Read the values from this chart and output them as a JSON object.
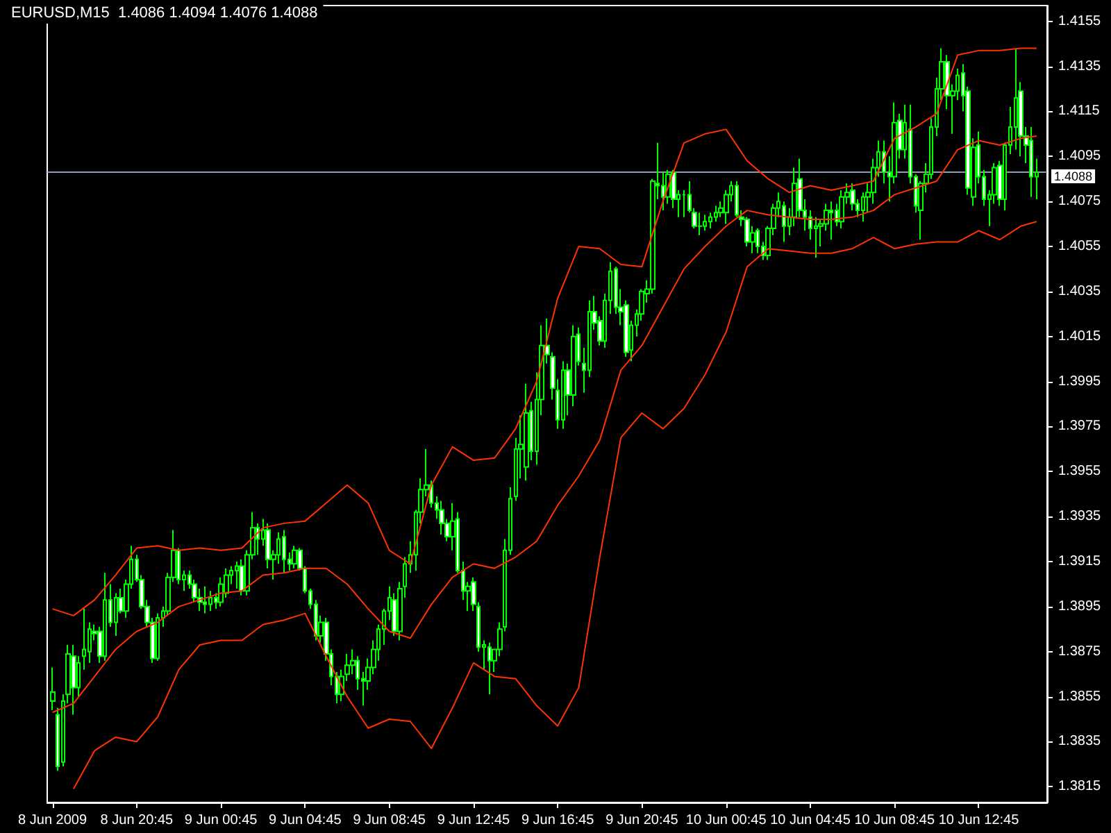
{
  "chart_data": {
    "type": "candlestick",
    "title": "EURUSD,M15  1.4086 1.4094 1.4076 1.4088",
    "color": "#00ff00",
    "marker": "none",
    "x": [
      "2009-06-08T16:45",
      "2009-06-08T17:00",
      "2009-06-08T17:15",
      "2009-06-08T17:30",
      "2009-06-08T17:45",
      "2009-06-08T18:00",
      "2009-06-08T18:15",
      "2009-06-08T18:30",
      "2009-06-08T18:45",
      "2009-06-08T19:00",
      "2009-06-08T19:15",
      "2009-06-08T19:30",
      "2009-06-08T19:45",
      "2009-06-08T20:00",
      "2009-06-08T20:15",
      "2009-06-08T20:30",
      "2009-06-08T20:45",
      "2009-06-08T21:00",
      "2009-06-08T21:15",
      "2009-06-08T21:30",
      "2009-06-08T21:45",
      "2009-06-08T22:00",
      "2009-06-08T22:15",
      "2009-06-08T22:30",
      "2009-06-08T22:45",
      "2009-06-08T23:00",
      "2009-06-08T23:15",
      "2009-06-08T23:30",
      "2009-06-08T23:45",
      "2009-06-09T00:00",
      "2009-06-09T00:15",
      "2009-06-09T00:30",
      "2009-06-09T00:45",
      "2009-06-09T01:00",
      "2009-06-09T01:15",
      "2009-06-09T01:30",
      "2009-06-09T01:45",
      "2009-06-09T02:00",
      "2009-06-09T02:15",
      "2009-06-09T02:30",
      "2009-06-09T02:45",
      "2009-06-09T03:00",
      "2009-06-09T03:15",
      "2009-06-09T03:30",
      "2009-06-09T03:45",
      "2009-06-09T04:00",
      "2009-06-09T04:15",
      "2009-06-09T04:30",
      "2009-06-09T04:45",
      "2009-06-09T05:00",
      "2009-06-09T05:15",
      "2009-06-09T05:30",
      "2009-06-09T05:45",
      "2009-06-09T06:00",
      "2009-06-09T06:15",
      "2009-06-09T06:30",
      "2009-06-09T06:45",
      "2009-06-09T07:00",
      "2009-06-09T07:15",
      "2009-06-09T07:30",
      "2009-06-09T07:45",
      "2009-06-09T08:00",
      "2009-06-09T08:15",
      "2009-06-09T08:30",
      "2009-06-09T08:45",
      "2009-06-09T09:00",
      "2009-06-09T09:15",
      "2009-06-09T09:30",
      "2009-06-09T09:45",
      "2009-06-09T10:00",
      "2009-06-09T10:15",
      "2009-06-09T10:30",
      "2009-06-09T10:45",
      "2009-06-09T11:00",
      "2009-06-09T11:15",
      "2009-06-09T11:30",
      "2009-06-09T11:45",
      "2009-06-09T12:00",
      "2009-06-09T12:15",
      "2009-06-09T12:30",
      "2009-06-09T12:45",
      "2009-06-09T13:00",
      "2009-06-09T13:15",
      "2009-06-09T13:30",
      "2009-06-09T13:45",
      "2009-06-09T14:00",
      "2009-06-09T14:15",
      "2009-06-09T14:30",
      "2009-06-09T14:45",
      "2009-06-09T15:00",
      "2009-06-09T15:15",
      "2009-06-09T15:30",
      "2009-06-09T15:45",
      "2009-06-09T16:00",
      "2009-06-09T16:15",
      "2009-06-09T16:30",
      "2009-06-09T16:45",
      "2009-06-09T17:00",
      "2009-06-09T17:15",
      "2009-06-09T17:30",
      "2009-06-09T17:45",
      "2009-06-09T18:00",
      "2009-06-09T18:15",
      "2009-06-09T18:30",
      "2009-06-09T18:45",
      "2009-06-09T19:00",
      "2009-06-09T19:15",
      "2009-06-09T19:30",
      "2009-06-09T19:45",
      "2009-06-09T20:00",
      "2009-06-09T20:15",
      "2009-06-09T20:30",
      "2009-06-09T20:45",
      "2009-06-09T21:00",
      "2009-06-09T21:15",
      "2009-06-09T21:30",
      "2009-06-09T21:45",
      "2009-06-09T22:00",
      "2009-06-09T22:15",
      "2009-06-09T22:30",
      "2009-06-09T22:45",
      "2009-06-09T23:00",
      "2009-06-09T23:15",
      "2009-06-09T23:30",
      "2009-06-09T23:45",
      "2009-06-10T00:00",
      "2009-06-10T00:15",
      "2009-06-10T00:30",
      "2009-06-10T00:45",
      "2009-06-10T01:00",
      "2009-06-10T01:15",
      "2009-06-10T01:30",
      "2009-06-10T01:45",
      "2009-06-10T02:00",
      "2009-06-10T02:15",
      "2009-06-10T02:30",
      "2009-06-10T02:45",
      "2009-06-10T03:00",
      "2009-06-10T03:15",
      "2009-06-10T03:30",
      "2009-06-10T03:45",
      "2009-06-10T04:00",
      "2009-06-10T04:15",
      "2009-06-10T04:30",
      "2009-06-10T04:45",
      "2009-06-10T05:00",
      "2009-06-10T05:15",
      "2009-06-10T05:30",
      "2009-06-10T05:45",
      "2009-06-10T06:00",
      "2009-06-10T06:15",
      "2009-06-10T06:30",
      "2009-06-10T06:45",
      "2009-06-10T07:00",
      "2009-06-10T07:15",
      "2009-06-10T07:30",
      "2009-06-10T07:45",
      "2009-06-10T08:00",
      "2009-06-10T08:15",
      "2009-06-10T08:30",
      "2009-06-10T08:45",
      "2009-06-10T09:00",
      "2009-06-10T09:15",
      "2009-06-10T09:30",
      "2009-06-10T09:45",
      "2009-06-10T10:00",
      "2009-06-10T10:15",
      "2009-06-10T10:30",
      "2009-06-10T10:45",
      "2009-06-10T11:00",
      "2009-06-10T11:15",
      "2009-06-10T11:30",
      "2009-06-10T11:45",
      "2009-06-10T12:00",
      "2009-06-10T12:15",
      "2009-06-10T12:30",
      "2009-06-10T12:45",
      "2009-06-10T13:00",
      "2009-06-10T13:15",
      "2009-06-10T13:30",
      "2009-06-10T13:45",
      "2009-06-10T14:00",
      "2009-06-10T14:15",
      "2009-06-10T14:30",
      "2009-06-10T14:45",
      "2009-06-10T15:00",
      "2009-06-10T15:15",
      "2009-06-10T15:30"
    ],
    "ohlc": [
      [
        1.3853,
        1.3868,
        1.3849,
        1.3857
      ],
      [
        1.3847,
        1.385,
        1.3822,
        1.3824
      ],
      [
        1.3826,
        1.3856,
        1.3824,
        1.3853
      ],
      [
        1.3856,
        1.3878,
        1.3852,
        1.3874
      ],
      [
        1.3873,
        1.3878,
        1.3847,
        1.3859
      ],
      [
        1.3859,
        1.3873,
        1.3855,
        1.387
      ],
      [
        1.3873,
        1.3894,
        1.3867,
        1.3876
      ],
      [
        1.3875,
        1.3888,
        1.387,
        1.3885
      ],
      [
        1.3884,
        1.3887,
        1.388,
        1.3883
      ],
      [
        1.3884,
        1.3886,
        1.387,
        1.3873
      ],
      [
        1.3873,
        1.391,
        1.3871,
        1.3898
      ],
      [
        1.3898,
        1.3905,
        1.3886,
        1.3888
      ],
      [
        1.3888,
        1.3901,
        1.3882,
        1.3899
      ],
      [
        1.3899,
        1.3903,
        1.3892,
        1.3893
      ],
      [
        1.3893,
        1.3907,
        1.389,
        1.3905
      ],
      [
        1.3905,
        1.3922,
        1.3903,
        1.3916
      ],
      [
        1.3916,
        1.3918,
        1.3906,
        1.3907
      ],
      [
        1.3907,
        1.3909,
        1.3894,
        1.3895
      ],
      [
        1.3895,
        1.3898,
        1.3886,
        1.3888
      ],
      [
        1.3888,
        1.389,
        1.387,
        1.3872
      ],
      [
        1.3872,
        1.3892,
        1.3871,
        1.389
      ],
      [
        1.389,
        1.3895,
        1.3886,
        1.3893
      ],
      [
        1.3893,
        1.391,
        1.3891,
        1.3908
      ],
      [
        1.3908,
        1.3929,
        1.3906,
        1.392
      ],
      [
        1.392,
        1.3921,
        1.3905,
        1.3907
      ],
      [
        1.3907,
        1.3911,
        1.3902,
        1.3909
      ],
      [
        1.3909,
        1.3911,
        1.3903,
        1.3905
      ],
      [
        1.3905,
        1.3907,
        1.3897,
        1.3899
      ],
      [
        1.3899,
        1.3903,
        1.3893,
        1.3897
      ],
      [
        1.3897,
        1.3904,
        1.3892,
        1.3896
      ],
      [
        1.3896,
        1.3902,
        1.3893,
        1.3899
      ],
      [
        1.3899,
        1.3901,
        1.3894,
        1.3897
      ],
      [
        1.3897,
        1.3908,
        1.3895,
        1.3905
      ],
      [
        1.3901,
        1.3912,
        1.3899,
        1.3909
      ],
      [
        1.3909,
        1.3913,
        1.3905,
        1.3911
      ],
      [
        1.3911,
        1.3915,
        1.3903,
        1.3913
      ],
      [
        1.3913,
        1.3916,
        1.39,
        1.3902
      ],
      [
        1.3902,
        1.392,
        1.39,
        1.3918
      ],
      [
        1.3918,
        1.3937,
        1.3916,
        1.393
      ],
      [
        1.393,
        1.3932,
        1.3918,
        1.3925
      ],
      [
        1.3925,
        1.3934,
        1.3922,
        1.3929
      ],
      [
        1.3929,
        1.3932,
        1.3912,
        1.3916
      ],
      [
        1.3916,
        1.392,
        1.3907,
        1.3918
      ],
      [
        1.3918,
        1.3928,
        1.3914,
        1.3925
      ],
      [
        1.3926,
        1.3929,
        1.391,
        1.3916
      ],
      [
        1.3916,
        1.3919,
        1.3911,
        1.3914
      ],
      [
        1.3914,
        1.3922,
        1.3912,
        1.392
      ],
      [
        1.392,
        1.3921,
        1.3911,
        1.3912
      ],
      [
        1.3912,
        1.3913,
        1.3901,
        1.3902
      ],
      [
        1.3902,
        1.3903,
        1.3894,
        1.3896
      ],
      [
        1.3896,
        1.3898,
        1.388,
        1.3882
      ],
      [
        1.3882,
        1.3891,
        1.3879,
        1.3888
      ],
      [
        1.3888,
        1.389,
        1.3871,
        1.3874
      ],
      [
        1.3874,
        1.3876,
        1.386,
        1.3864
      ],
      [
        1.3864,
        1.3866,
        1.3852,
        1.3856
      ],
      [
        1.3856,
        1.3867,
        1.3853,
        1.3864
      ],
      [
        1.3865,
        1.3874,
        1.3862,
        1.3869
      ],
      [
        1.3869,
        1.3876,
        1.3865,
        1.3871
      ],
      [
        1.3871,
        1.3873,
        1.3858,
        1.3863
      ],
      [
        1.3863,
        1.3866,
        1.3851,
        1.3862
      ],
      [
        1.3862,
        1.3872,
        1.3858,
        1.3868
      ],
      [
        1.3868,
        1.388,
        1.3865,
        1.3876
      ],
      [
        1.3876,
        1.3887,
        1.3871,
        1.3885
      ],
      [
        1.3885,
        1.3894,
        1.3878,
        1.3893
      ],
      [
        1.3893,
        1.3904,
        1.3889,
        1.3899
      ],
      [
        1.3898,
        1.3901,
        1.3882,
        1.3884
      ],
      [
        1.3884,
        1.3906,
        1.388,
        1.3903
      ],
      [
        1.3904,
        1.3917,
        1.3899,
        1.3914
      ],
      [
        1.3914,
        1.3924,
        1.391,
        1.3918
      ],
      [
        1.3918,
        1.3938,
        1.3911,
        1.3937
      ],
      [
        1.3937,
        1.3952,
        1.3932,
        1.3947
      ],
      [
        1.3947,
        1.3965,
        1.3944,
        1.3949
      ],
      [
        1.3949,
        1.3951,
        1.3939,
        1.3941
      ],
      [
        1.3941,
        1.3944,
        1.3934,
        1.3938
      ],
      [
        1.3938,
        1.3942,
        1.3927,
        1.3932
      ],
      [
        1.3932,
        1.3934,
        1.3924,
        1.3926
      ],
      [
        1.3926,
        1.3941,
        1.392,
        1.3933
      ],
      [
        1.3934,
        1.3937,
        1.391,
        1.3911
      ],
      [
        1.3911,
        1.3915,
        1.3898,
        1.3902
      ],
      [
        1.3902,
        1.3906,
        1.3893,
        1.3904
      ],
      [
        1.3906,
        1.3908,
        1.3893,
        1.3896
      ],
      [
        1.3895,
        1.3897,
        1.3875,
        1.3877
      ],
      [
        1.3877,
        1.388,
        1.3867,
        1.3878
      ],
      [
        1.3877,
        1.3879,
        1.3856,
        1.3871
      ],
      [
        1.3871,
        1.3876,
        1.3866,
        1.3876
      ],
      [
        1.3876,
        1.3888,
        1.3873,
        1.3885
      ],
      [
        1.3886,
        1.3925,
        1.3884,
        1.392
      ],
      [
        1.392,
        1.3948,
        1.3918,
        1.3943
      ],
      [
        1.3944,
        1.397,
        1.3942,
        1.3965
      ],
      [
        1.3965,
        1.398,
        1.3952,
        1.3967
      ],
      [
        1.3957,
        1.3994,
        1.3951,
        1.3981
      ],
      [
        1.3982,
        1.3986,
        1.396,
        1.3964
      ],
      [
        1.3964,
        1.3999,
        1.3958,
        1.3987
      ],
      [
        1.3987,
        1.402,
        1.398,
        1.4011
      ],
      [
        1.4011,
        1.4023,
        1.4003,
        1.4007
      ],
      [
        1.4006,
        1.4008,
        1.3987,
        1.3992
      ],
      [
        1.3991,
        1.3996,
        1.3974,
        1.3978
      ],
      [
        1.3978,
        1.4004,
        1.3974,
        1.4
      ],
      [
        1.4,
        1.4003,
        1.398,
        1.3989
      ],
      [
        1.3989,
        1.402,
        1.3984,
        1.4015
      ],
      [
        1.4016,
        1.4019,
        1.4002,
        1.4004
      ],
      [
        1.4003,
        1.401,
        1.399,
        1.4
      ],
      [
        1.4,
        1.4031,
        1.3997,
        1.4026
      ],
      [
        1.4026,
        1.4033,
        1.4018,
        1.4021
      ],
      [
        1.4022,
        1.4024,
        1.4011,
        1.4013
      ],
      [
        1.4013,
        1.4034,
        1.401,
        1.4031
      ],
      [
        1.4031,
        1.4048,
        1.4025,
        1.4044
      ],
      [
        1.4045,
        1.4046,
        1.4025,
        1.4028
      ],
      [
        1.4028,
        1.4036,
        1.402,
        1.4026
      ],
      [
        1.4029,
        1.4031,
        1.4006,
        1.4008
      ],
      [
        1.4009,
        1.4022,
        1.4004,
        1.402
      ],
      [
        1.402,
        1.4027,
        1.4015,
        1.4025
      ],
      [
        1.4025,
        1.4036,
        1.4022,
        1.4035
      ],
      [
        1.4034,
        1.404,
        1.403,
        1.4036
      ],
      [
        1.4036,
        1.4085,
        1.4034,
        1.4084
      ],
      [
        1.4083,
        1.4101,
        1.4076,
        1.4082
      ],
      [
        1.4082,
        1.4088,
        1.4071,
        1.4077
      ],
      [
        1.4077,
        1.4089,
        1.4074,
        1.4087
      ],
      [
        1.4088,
        1.4089,
        1.4072,
        1.4076
      ],
      [
        1.4076,
        1.408,
        1.4068,
        1.4078
      ],
      [
        1.4078,
        1.408,
        1.4068,
        1.4078
      ],
      [
        1.4078,
        1.4084,
        1.407,
        1.4071
      ],
      [
        1.407,
        1.4072,
        1.4063,
        1.4064
      ],
      [
        1.4064,
        1.407,
        1.406,
        1.4064
      ],
      [
        1.4064,
        1.4069,
        1.4062,
        1.4066
      ],
      [
        1.4066,
        1.407,
        1.4063,
        1.4068
      ],
      [
        1.4068,
        1.4073,
        1.4066,
        1.407
      ],
      [
        1.407,
        1.4075,
        1.4068,
        1.4072
      ],
      [
        1.407,
        1.408,
        1.4065,
        1.4078
      ],
      [
        1.4078,
        1.4084,
        1.4075,
        1.4082
      ],
      [
        1.4082,
        1.4084,
        1.4068,
        1.4069
      ],
      [
        1.4068,
        1.4071,
        1.4064,
        1.4067
      ],
      [
        1.4067,
        1.4068,
        1.4055,
        1.4057
      ],
      [
        1.4057,
        1.4064,
        1.4052,
        1.4061
      ],
      [
        1.4062,
        1.4063,
        1.4052,
        1.4055
      ],
      [
        1.4055,
        1.4057,
        1.4049,
        1.4051
      ],
      [
        1.4051,
        1.4064,
        1.4049,
        1.4063
      ],
      [
        1.4063,
        1.4074,
        1.406,
        1.4072
      ],
      [
        1.4072,
        1.4079,
        1.4068,
        1.4075
      ],
      [
        1.4073,
        1.4075,
        1.4057,
        1.4064
      ],
      [
        1.4064,
        1.4072,
        1.406,
        1.4068
      ],
      [
        1.4068,
        1.409,
        1.4064,
        1.4083
      ],
      [
        1.4085,
        1.4094,
        1.4068,
        1.4071
      ],
      [
        1.4071,
        1.4076,
        1.4062,
        1.4068
      ],
      [
        1.4068,
        1.4071,
        1.4058,
        1.4063
      ],
      [
        1.4063,
        1.4068,
        1.405,
        1.4064
      ],
      [
        1.4064,
        1.4067,
        1.4055,
        1.4065
      ],
      [
        1.4065,
        1.4074,
        1.4062,
        1.4071
      ],
      [
        1.4071,
        1.4075,
        1.4058,
        1.407
      ],
      [
        1.4071,
        1.4074,
        1.4064,
        1.4066
      ],
      [
        1.4066,
        1.408,
        1.4063,
        1.4077
      ],
      [
        1.4077,
        1.4083,
        1.4074,
        1.4079
      ],
      [
        1.408,
        1.4083,
        1.4071,
        1.4074
      ],
      [
        1.4074,
        1.4076,
        1.4068,
        1.4071
      ],
      [
        1.4071,
        1.4079,
        1.4066,
        1.4077
      ],
      [
        1.4077,
        1.4083,
        1.407,
        1.4079
      ],
      [
        1.4079,
        1.4094,
        1.4074,
        1.409
      ],
      [
        1.409,
        1.4102,
        1.4086,
        1.4097
      ],
      [
        1.4097,
        1.4102,
        1.4083,
        1.4088
      ],
      [
        1.4088,
        1.4095,
        1.4075,
        1.4086
      ],
      [
        1.4086,
        1.4119,
        1.4083,
        1.411
      ],
      [
        1.4111,
        1.4114,
        1.4094,
        1.4098
      ],
      [
        1.4098,
        1.4118,
        1.4094,
        1.411
      ],
      [
        1.4107,
        1.4118,
        1.4083,
        1.4086
      ],
      [
        1.4086,
        1.4087,
        1.407,
        1.4073
      ],
      [
        1.4071,
        1.4084,
        1.4058,
        1.4083
      ],
      [
        1.4083,
        1.4092,
        1.4079,
        1.4087
      ],
      [
        1.4087,
        1.4112,
        1.4085,
        1.4108
      ],
      [
        1.4108,
        1.413,
        1.4104,
        1.4125
      ],
      [
        1.4125,
        1.4143,
        1.412,
        1.4137
      ],
      [
        1.4137,
        1.414,
        1.4116,
        1.4122
      ],
      [
        1.4122,
        1.4127,
        1.4105,
        1.4124
      ],
      [
        1.4124,
        1.4134,
        1.412,
        1.4131
      ],
      [
        1.4132,
        1.4136,
        1.4115,
        1.4122
      ],
      [
        1.4124,
        1.4126,
        1.4078,
        1.4081
      ],
      [
        1.4077,
        1.4103,
        1.4073,
        1.4099
      ],
      [
        1.41,
        1.4106,
        1.4083,
        1.4086
      ],
      [
        1.4086,
        1.4089,
        1.4073,
        1.4076
      ],
      [
        1.4076,
        1.408,
        1.4064,
        1.4078
      ],
      [
        1.4078,
        1.4092,
        1.4074,
        1.409
      ],
      [
        1.4091,
        1.4093,
        1.4073,
        1.4076
      ],
      [
        1.4076,
        1.4101,
        1.4071,
        1.41
      ],
      [
        1.41,
        1.4117,
        1.4096,
        1.4108
      ],
      [
        1.4108,
        1.4143,
        1.4098,
        1.4121
      ],
      [
        1.4124,
        1.4128,
        1.4095,
        1.4104
      ],
      [
        1.4104,
        1.4108,
        1.4092,
        1.41
      ],
      [
        1.4102,
        1.4108,
        1.4077,
        1.4086
      ],
      [
        1.4086,
        1.4094,
        1.4076,
        1.4088
      ]
    ],
    "series": [
      {
        "type": "line",
        "color": "#ff3300",
        "x": [
          "2009-06-08T16:45",
          "2009-06-08T17:45",
          "2009-06-08T18:45",
          "2009-06-08T19:45",
          "2009-06-08T20:45",
          "2009-06-08T21:45",
          "2009-06-08T22:45",
          "2009-06-08T23:45",
          "2009-06-09T00:45",
          "2009-06-09T01:45",
          "2009-06-09T02:45",
          "2009-06-09T03:45",
          "2009-06-09T04:45",
          "2009-06-09T05:45",
          "2009-06-09T06:45",
          "2009-06-09T07:45",
          "2009-06-09T08:45",
          "2009-06-09T09:45",
          "2009-06-09T10:45",
          "2009-06-09T11:45",
          "2009-06-09T12:45",
          "2009-06-09T13:45",
          "2009-06-09T14:45",
          "2009-06-09T15:45",
          "2009-06-09T16:45",
          "2009-06-09T17:45",
          "2009-06-09T18:45",
          "2009-06-09T19:45",
          "2009-06-09T20:45",
          "2009-06-09T21:45",
          "2009-06-09T22:45",
          "2009-06-09T23:45",
          "2009-06-10T00:45",
          "2009-06-10T01:45",
          "2009-06-10T02:45",
          "2009-06-10T03:45",
          "2009-06-10T04:45",
          "2009-06-10T05:45",
          "2009-06-10T06:45",
          "2009-06-10T07:45",
          "2009-06-10T08:45",
          "2009-06-10T09:45",
          "2009-06-10T10:45",
          "2009-06-10T11:45",
          "2009-06-10T12:45",
          "2009-06-10T13:45",
          "2009-06-10T14:45",
          "2009-06-10T15:30"
        ],
        "values": [
          1.3894,
          1.3891,
          1.3898,
          1.3909,
          1.3921,
          1.3922,
          1.392,
          1.3921,
          1.392,
          1.3921,
          1.393,
          1.3932,
          1.3933,
          1.3941,
          1.3949,
          1.3941,
          1.392,
          1.3914,
          1.3949,
          1.3966,
          1.396,
          1.3961,
          1.3974,
          1.3995,
          1.4032,
          1.4055,
          1.4054,
          1.4047,
          1.4046,
          1.4075,
          1.4101,
          1.4105,
          1.4107,
          1.4093,
          1.4085,
          1.4079,
          1.4082,
          1.408,
          1.4082,
          1.4084,
          1.4103,
          1.4108,
          1.4114,
          1.414,
          1.4142,
          1.4142,
          1.4143,
          1.4143
        ]
      },
      {
        "type": "line",
        "color": "#ff3300",
        "x": [
          "2009-06-08T16:45",
          "2009-06-08T17:45",
          "2009-06-08T18:45",
          "2009-06-08T19:45",
          "2009-06-08T20:45",
          "2009-06-08T21:45",
          "2009-06-08T22:45",
          "2009-06-08T23:45",
          "2009-06-09T00:45",
          "2009-06-09T01:45",
          "2009-06-09T02:45",
          "2009-06-09T03:45",
          "2009-06-09T04:45",
          "2009-06-09T05:45",
          "2009-06-09T06:45",
          "2009-06-09T07:45",
          "2009-06-09T08:45",
          "2009-06-09T09:45",
          "2009-06-09T10:45",
          "2009-06-09T11:45",
          "2009-06-09T12:45",
          "2009-06-09T13:45",
          "2009-06-09T14:45",
          "2009-06-09T15:45",
          "2009-06-09T16:45",
          "2009-06-09T17:45",
          "2009-06-09T18:45",
          "2009-06-09T19:45",
          "2009-06-09T20:45",
          "2009-06-09T21:45",
          "2009-06-09T22:45",
          "2009-06-09T23:45",
          "2009-06-10T00:45",
          "2009-06-10T01:45",
          "2009-06-10T02:45",
          "2009-06-10T03:45",
          "2009-06-10T04:45",
          "2009-06-10T05:45",
          "2009-06-10T06:45",
          "2009-06-10T07:45",
          "2009-06-10T08:45",
          "2009-06-10T09:45",
          "2009-06-10T10:45",
          "2009-06-10T11:45",
          "2009-06-10T12:45",
          "2009-06-10T13:45",
          "2009-06-10T14:45",
          "2009-06-10T15:30"
        ],
        "values": [
          1.3848,
          1.3852,
          1.3864,
          1.3876,
          1.3884,
          1.3888,
          1.3895,
          1.3898,
          1.3901,
          1.3902,
          1.3909,
          1.391,
          1.3912,
          1.3912,
          1.3905,
          1.3894,
          1.3884,
          1.3881,
          1.3896,
          1.3908,
          1.3914,
          1.3912,
          1.3917,
          1.3924,
          1.394,
          1.3953,
          1.3969,
          1.4,
          1.4011,
          1.4028,
          1.4045,
          1.4055,
          1.4064,
          1.4071,
          1.4069,
          1.4068,
          1.4067,
          1.4067,
          1.4068,
          1.4071,
          1.4078,
          1.4081,
          1.4084,
          1.4098,
          1.4102,
          1.41,
          1.4103,
          1.4104
        ]
      },
      {
        "type": "line",
        "color": "#ff3300",
        "x": [
          "2009-06-08T17:45",
          "2009-06-08T18:45",
          "2009-06-08T19:45",
          "2009-06-08T20:45",
          "2009-06-08T21:45",
          "2009-06-08T22:45",
          "2009-06-08T23:45",
          "2009-06-09T00:45",
          "2009-06-09T01:45",
          "2009-06-09T02:45",
          "2009-06-09T03:45",
          "2009-06-09T04:45",
          "2009-06-09T05:45",
          "2009-06-09T06:45",
          "2009-06-09T07:45",
          "2009-06-09T08:45",
          "2009-06-09T09:45",
          "2009-06-09T10:45",
          "2009-06-09T11:45",
          "2009-06-09T12:45",
          "2009-06-09T13:45",
          "2009-06-09T14:45",
          "2009-06-09T15:45",
          "2009-06-09T16:45",
          "2009-06-09T17:45",
          "2009-06-09T18:45",
          "2009-06-09T19:45",
          "2009-06-09T20:45",
          "2009-06-09T21:45",
          "2009-06-09T22:45",
          "2009-06-09T23:45",
          "2009-06-10T00:45",
          "2009-06-10T01:45",
          "2009-06-10T02:45",
          "2009-06-10T03:45",
          "2009-06-10T04:45",
          "2009-06-10T05:45",
          "2009-06-10T06:45",
          "2009-06-10T07:45",
          "2009-06-10T08:45",
          "2009-06-10T09:45",
          "2009-06-10T10:45",
          "2009-06-10T11:45",
          "2009-06-10T12:45",
          "2009-06-10T13:45",
          "2009-06-10T14:45",
          "2009-06-10T15:30"
        ],
        "values": [
          1.3814,
          1.3831,
          1.3837,
          1.3835,
          1.3846,
          1.3867,
          1.3878,
          1.388,
          1.388,
          1.3887,
          1.3889,
          1.3892,
          1.3873,
          1.3855,
          1.3841,
          1.3845,
          1.3844,
          1.3832,
          1.385,
          1.387,
          1.3864,
          1.3863,
          1.3851,
          1.3842,
          1.3859,
          1.3917,
          1.397,
          1.3981,
          1.3974,
          1.3983,
          1.3998,
          1.4017,
          1.4046,
          1.4054,
          1.4053,
          1.4052,
          1.4052,
          1.4054,
          1.4059,
          1.4054,
          1.4056,
          1.4057,
          1.4057,
          1.4062,
          1.4058,
          1.4064,
          1.4066
        ]
      }
    ],
    "xlim": [
      "2009-06-08T16:30",
      "2009-06-10T16:00"
    ],
    "xticks": [
      {
        "value": "2009-06-08T16:45",
        "label": "8 Jun 2009"
      },
      {
        "value": "2009-06-08T20:45",
        "label": "8 Jun 20:45"
      },
      {
        "value": "2009-06-09T00:45",
        "label": "9 Jun 00:45"
      },
      {
        "value": "2009-06-09T04:45",
        "label": "9 Jun 04:45"
      },
      {
        "value": "2009-06-09T08:45",
        "label": "9 Jun 08:45"
      },
      {
        "value": "2009-06-09T12:45",
        "label": "9 Jun 12:45"
      },
      {
        "value": "2009-06-09T16:45",
        "label": "9 Jun 16:45"
      },
      {
        "value": "2009-06-09T20:45",
        "label": "9 Jun 20:45"
      },
      {
        "value": "2009-06-10T00:45",
        "label": "10 Jun 00:45"
      },
      {
        "value": "2009-06-10T04:45",
        "label": "10 Jun 04:45"
      },
      {
        "value": "2009-06-10T08:45",
        "label": "10 Jun 08:45"
      },
      {
        "value": "2009-06-10T12:45",
        "label": "10 Jun 12:45"
      }
    ],
    "ylim": [
      1.3808,
      1.4162
    ],
    "yticks": [
      1.3815,
      1.3835,
      1.3855,
      1.3875,
      1.3895,
      1.3915,
      1.3935,
      1.3955,
      1.3975,
      1.3995,
      1.4015,
      1.4035,
      1.4055,
      1.4075,
      1.4095,
      1.4115,
      1.4135,
      1.4155
    ],
    "ref_lines": [
      {
        "axis": "y",
        "value": 1.4088,
        "label": "1.4088",
        "color": "#8c9bb0"
      }
    ]
  }
}
